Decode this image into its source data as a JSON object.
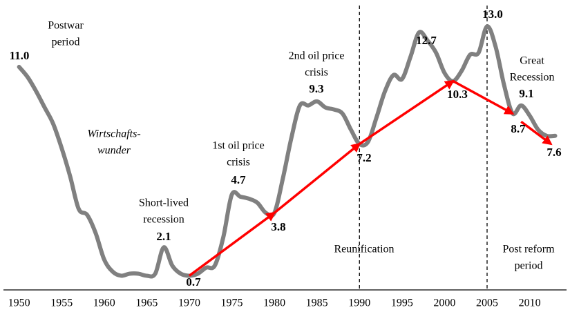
{
  "chart_data": {
    "type": "line",
    "x": [
      1950,
      1951,
      1952,
      1953,
      1954,
      1955,
      1956,
      1957,
      1958,
      1959,
      1960,
      1961,
      1962,
      1963,
      1964,
      1965,
      1966,
      1967,
      1968,
      1969,
      1970,
      1971,
      1972,
      1973,
      1974,
      1975,
      1976,
      1977,
      1978,
      1979,
      1980,
      1981,
      1982,
      1983,
      1984,
      1985,
      1986,
      1987,
      1988,
      1989,
      1990,
      1991,
      1992,
      1993,
      1994,
      1995,
      1996,
      1997,
      1998,
      1999,
      2000,
      2001,
      2002,
      2003,
      2004,
      2005,
      2006,
      2007,
      2008,
      2009,
      2010,
      2011,
      2012,
      2013
    ],
    "series": [
      {
        "color": "#808080",
        "values": [
          11.0,
          10.5,
          9.8,
          9.0,
          8.2,
          7.0,
          5.6,
          4.0,
          3.7,
          2.8,
          1.5,
          0.9,
          0.7,
          0.8,
          0.8,
          0.7,
          0.8,
          2.1,
          1.2,
          0.8,
          0.7,
          0.8,
          1.1,
          1.2,
          2.6,
          4.7,
          4.6,
          4.5,
          4.3,
          3.8,
          3.8,
          5.5,
          7.5,
          9.1,
          9.1,
          9.3,
          9.0,
          8.9,
          8.7,
          7.9,
          7.2,
          7.3,
          8.5,
          9.8,
          10.6,
          10.4,
          11.5,
          12.7,
          12.3,
          11.7,
          10.7,
          10.3,
          10.8,
          11.6,
          11.7,
          13.0,
          12.0,
          10.1,
          8.7,
          9.1,
          8.6,
          7.9,
          7.6,
          7.6
        ]
      }
    ],
    "xlim": [
      1948,
      2014.5
    ],
    "ylim": [
      0,
      14.3
    ],
    "xticks": [
      1950,
      1955,
      1960,
      1965,
      1970,
      1975,
      1980,
      1985,
      1990,
      1995,
      2000,
      2005,
      2010
    ],
    "vlines": [
      1990,
      2005
    ],
    "arrows": [
      {
        "x": [
          1970,
          1980
        ],
        "y": [
          0.7,
          3.8
        ]
      },
      {
        "x": [
          1980,
          1990
        ],
        "y": [
          3.8,
          7.2
        ]
      },
      {
        "x": [
          1990,
          2001
        ],
        "y": [
          7.2,
          10.3
        ]
      },
      {
        "x": [
          2001,
          2008
        ],
        "y": [
          10.3,
          8.7
        ]
      },
      {
        "x": [
          2009,
          2012.5
        ],
        "y": [
          8.3,
          7.2
        ]
      }
    ],
    "arrow_color": "#ff0000",
    "value_labels": [
      {
        "value": 11.0,
        "label": "11.0"
      },
      {
        "value": 2.1,
        "label": "2.1"
      },
      {
        "value": 0.7,
        "label": "0.7"
      },
      {
        "value": 4.7,
        "label": "4.7"
      },
      {
        "value": 3.8,
        "label": "3.8"
      },
      {
        "value": 9.3,
        "label": "9.3"
      },
      {
        "value": 7.2,
        "label": "7.2"
      },
      {
        "value": 12.7,
        "label": "12.7"
      },
      {
        "value": 10.3,
        "label": "10.3"
      },
      {
        "value": 13.0,
        "label": "13.0"
      },
      {
        "value": 9.1,
        "label": "9.1"
      },
      {
        "value": 8.7,
        "label": "8.7"
      },
      {
        "value": 7.6,
        "label": "7.6"
      }
    ],
    "annotations": [
      {
        "lines": [
          "Postwar",
          "period"
        ]
      },
      {
        "lines": [
          "Wirtschafts-",
          "wunder"
        ],
        "italic": true
      },
      {
        "lines": [
          "Short-lived",
          "recession"
        ]
      },
      {
        "lines": [
          "1st oil price",
          "crisis"
        ]
      },
      {
        "lines": [
          "2nd oil price",
          "crisis"
        ]
      },
      {
        "lines": [
          "Reunification"
        ]
      },
      {
        "lines": [
          "Great",
          "Recession"
        ]
      },
      {
        "lines": [
          "Post reform",
          "period"
        ]
      }
    ]
  }
}
